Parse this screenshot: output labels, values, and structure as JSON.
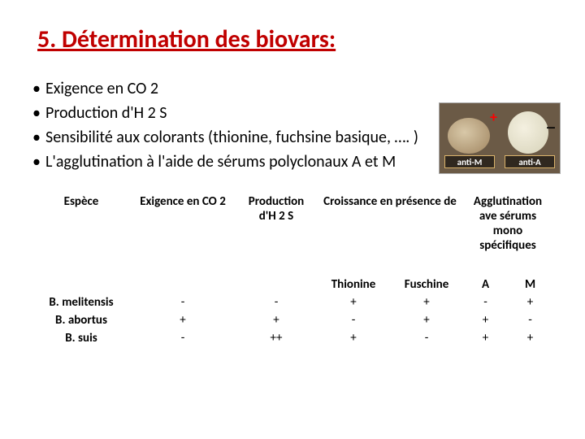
{
  "title": "5. Détermination des biovars:",
  "bullets": [
    "Exigence en CO 2",
    "Production d'H 2 S",
    "Sensibilité aux colorants (thionine, fuchsine basique, …. )",
    "L'agglutination à l'aide de sérums polyclonaux A et M"
  ],
  "photo": {
    "plus": "+",
    "minus": "_",
    "label1": "anti-M",
    "label2": "anti-A"
  },
  "table": {
    "headers": {
      "species": "Espèce",
      "co2": "Exigence en CO 2",
      "h2s": "Production d'H 2 S",
      "growth": "Croissance en présence de",
      "agglut": "Agglutination ave sérums mono spécifiques"
    },
    "subheaders": {
      "thionine": "Thionine",
      "fuschine": "Fuschine",
      "a": "A",
      "m": "M"
    },
    "rows": [
      {
        "species": "B. melitensis",
        "co2": "-",
        "h2s": "-",
        "thio": "+",
        "fus": "+",
        "a": "-",
        "m": "+"
      },
      {
        "species": "B. abortus",
        "co2": "+",
        "h2s": "+",
        "thio": "-",
        "fus": "+",
        "a": "+",
        "m": "-"
      },
      {
        "species": "B. suis",
        "co2": "-",
        "h2s": "++",
        "thio": "+",
        "fus": "-",
        "a": "+",
        "m": "+"
      }
    ]
  },
  "style": {
    "title_color": "#c00000",
    "text_color": "#000000",
    "plus_color": "#ff0000",
    "bg": "#ffffff",
    "photo_bg": "#6b5a46"
  }
}
